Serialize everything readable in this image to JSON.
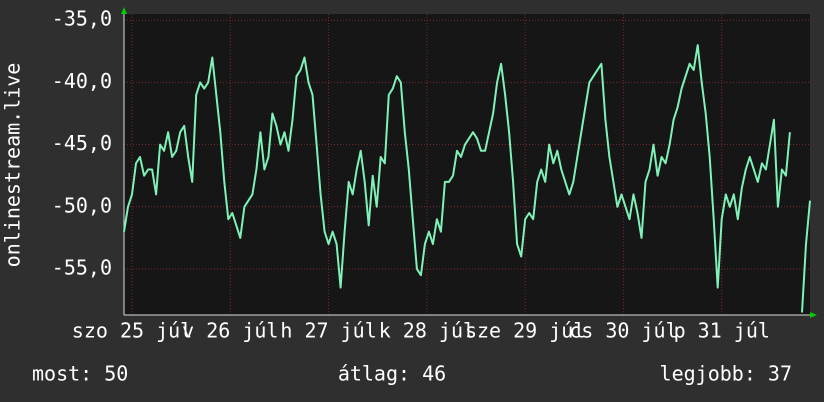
{
  "chart_data": {
    "type": "line",
    "y_label": "onlinestream.live",
    "ylim": [
      -58.7,
      -34.5
    ],
    "yticks": [
      {
        "value": -35,
        "label": "-35,0"
      },
      {
        "value": -40,
        "label": "-40,0"
      },
      {
        "value": -45,
        "label": "-45,0"
      },
      {
        "value": -50,
        "label": "-50,0"
      },
      {
        "value": -55,
        "label": "-55,0"
      }
    ],
    "xlim": [
      0,
      171
    ],
    "xticks": [
      {
        "value": 2,
        "label": "szo 25 júl"
      },
      {
        "value": 26.5,
        "label": "v 26 júl"
      },
      {
        "value": 51,
        "label": "h 27 júl"
      },
      {
        "value": 75.5,
        "label": "k 28 júl"
      },
      {
        "value": 100,
        "label": "sze 29 júl"
      },
      {
        "value": 124.5,
        "label": "cs 30 júl"
      },
      {
        "value": 149,
        "label": "p 31 júl"
      }
    ],
    "grid": true,
    "series": [
      {
        "color": "#7ff2b8",
        "values": [
          -52,
          -50,
          -49,
          -46.5,
          -46,
          -47.5,
          -47,
          -47,
          -49,
          -45,
          -45.5,
          -44,
          -46,
          -45.5,
          -44,
          -43.5,
          -46,
          -48,
          -41,
          -40,
          -40.5,
          -40,
          -38,
          -41,
          -44,
          -48,
          -51,
          -50.5,
          -51.5,
          -52.5,
          -50,
          -49.5,
          -49,
          -47,
          -44,
          -47,
          -46,
          -42.5,
          -43.5,
          -45,
          -44,
          -45.5,
          -43,
          -39.5,
          -39,
          -38,
          -40,
          -41,
          -45,
          -49,
          -52,
          -53,
          -52,
          -53,
          -56.5,
          -52,
          -48,
          -49,
          -47,
          -45.5,
          -48,
          -51.5,
          -47.5,
          -50,
          -46,
          -46.5,
          -41,
          -40.5,
          -39.5,
          -40,
          -44,
          -47,
          -51,
          -55,
          -55.5,
          -53,
          -52,
          -53,
          -51,
          -52,
          -48,
          -48,
          -47.5,
          -45.5,
          -46,
          -45,
          -44.5,
          -44,
          -44.5,
          -45.5,
          -45.5,
          -44,
          -42.5,
          -40,
          -38.5,
          -41,
          -44,
          -48,
          -53,
          -54,
          -51,
          -50.5,
          -51,
          -48,
          -47,
          -48,
          -45,
          -46.5,
          -45.5,
          -47,
          -48,
          -49,
          -48,
          -46,
          -44,
          -42,
          -40,
          -39.5,
          -39,
          -38.5,
          -43,
          -46,
          -48,
          -50,
          -49,
          -50,
          -51,
          -49,
          -50.5,
          -52.5,
          -48,
          -47,
          -45,
          -47.5,
          -46,
          -46.5,
          -45,
          -43,
          -42,
          -40.5,
          -39.5,
          -38.5,
          -39,
          -37,
          -40,
          -42.5,
          -46,
          -51,
          -56.5,
          -51,
          -49,
          -50,
          -49,
          -51,
          -48.5,
          -47,
          -46,
          -47,
          -48,
          -46.5,
          -47,
          -45,
          -43,
          -50,
          -47,
          -47.5,
          -44,
          null,
          null,
          -58.5,
          -53,
          -49.5
        ]
      }
    ],
    "footer": [
      "most: 50",
      "átlag: 46",
      "legjobb: 37"
    ]
  }
}
